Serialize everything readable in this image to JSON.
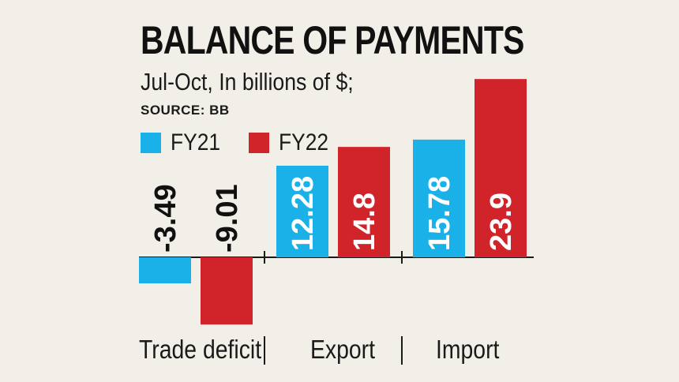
{
  "chart_data": {
    "type": "bar",
    "title": "BALANCE OF PAYMENTS",
    "subtitle": "Jul-Oct, In billions of $;",
    "source": "SOURCE: BB",
    "categories": [
      "Trade deficit",
      "Export",
      "Import"
    ],
    "series": [
      {
        "name": "FY21",
        "color": "#1ab0e8",
        "values": [
          -3.49,
          12.28,
          15.78
        ],
        "labels": [
          "-3.49",
          "12.28",
          "15.78"
        ]
      },
      {
        "name": "FY22",
        "color": "#d1232a",
        "values": [
          -9.01,
          14.8,
          23.9
        ],
        "labels": [
          "-9.01",
          "14.8",
          "23.9"
        ]
      }
    ],
    "separator_glyph": "|",
    "grid": false,
    "legend_position": "top-left"
  }
}
